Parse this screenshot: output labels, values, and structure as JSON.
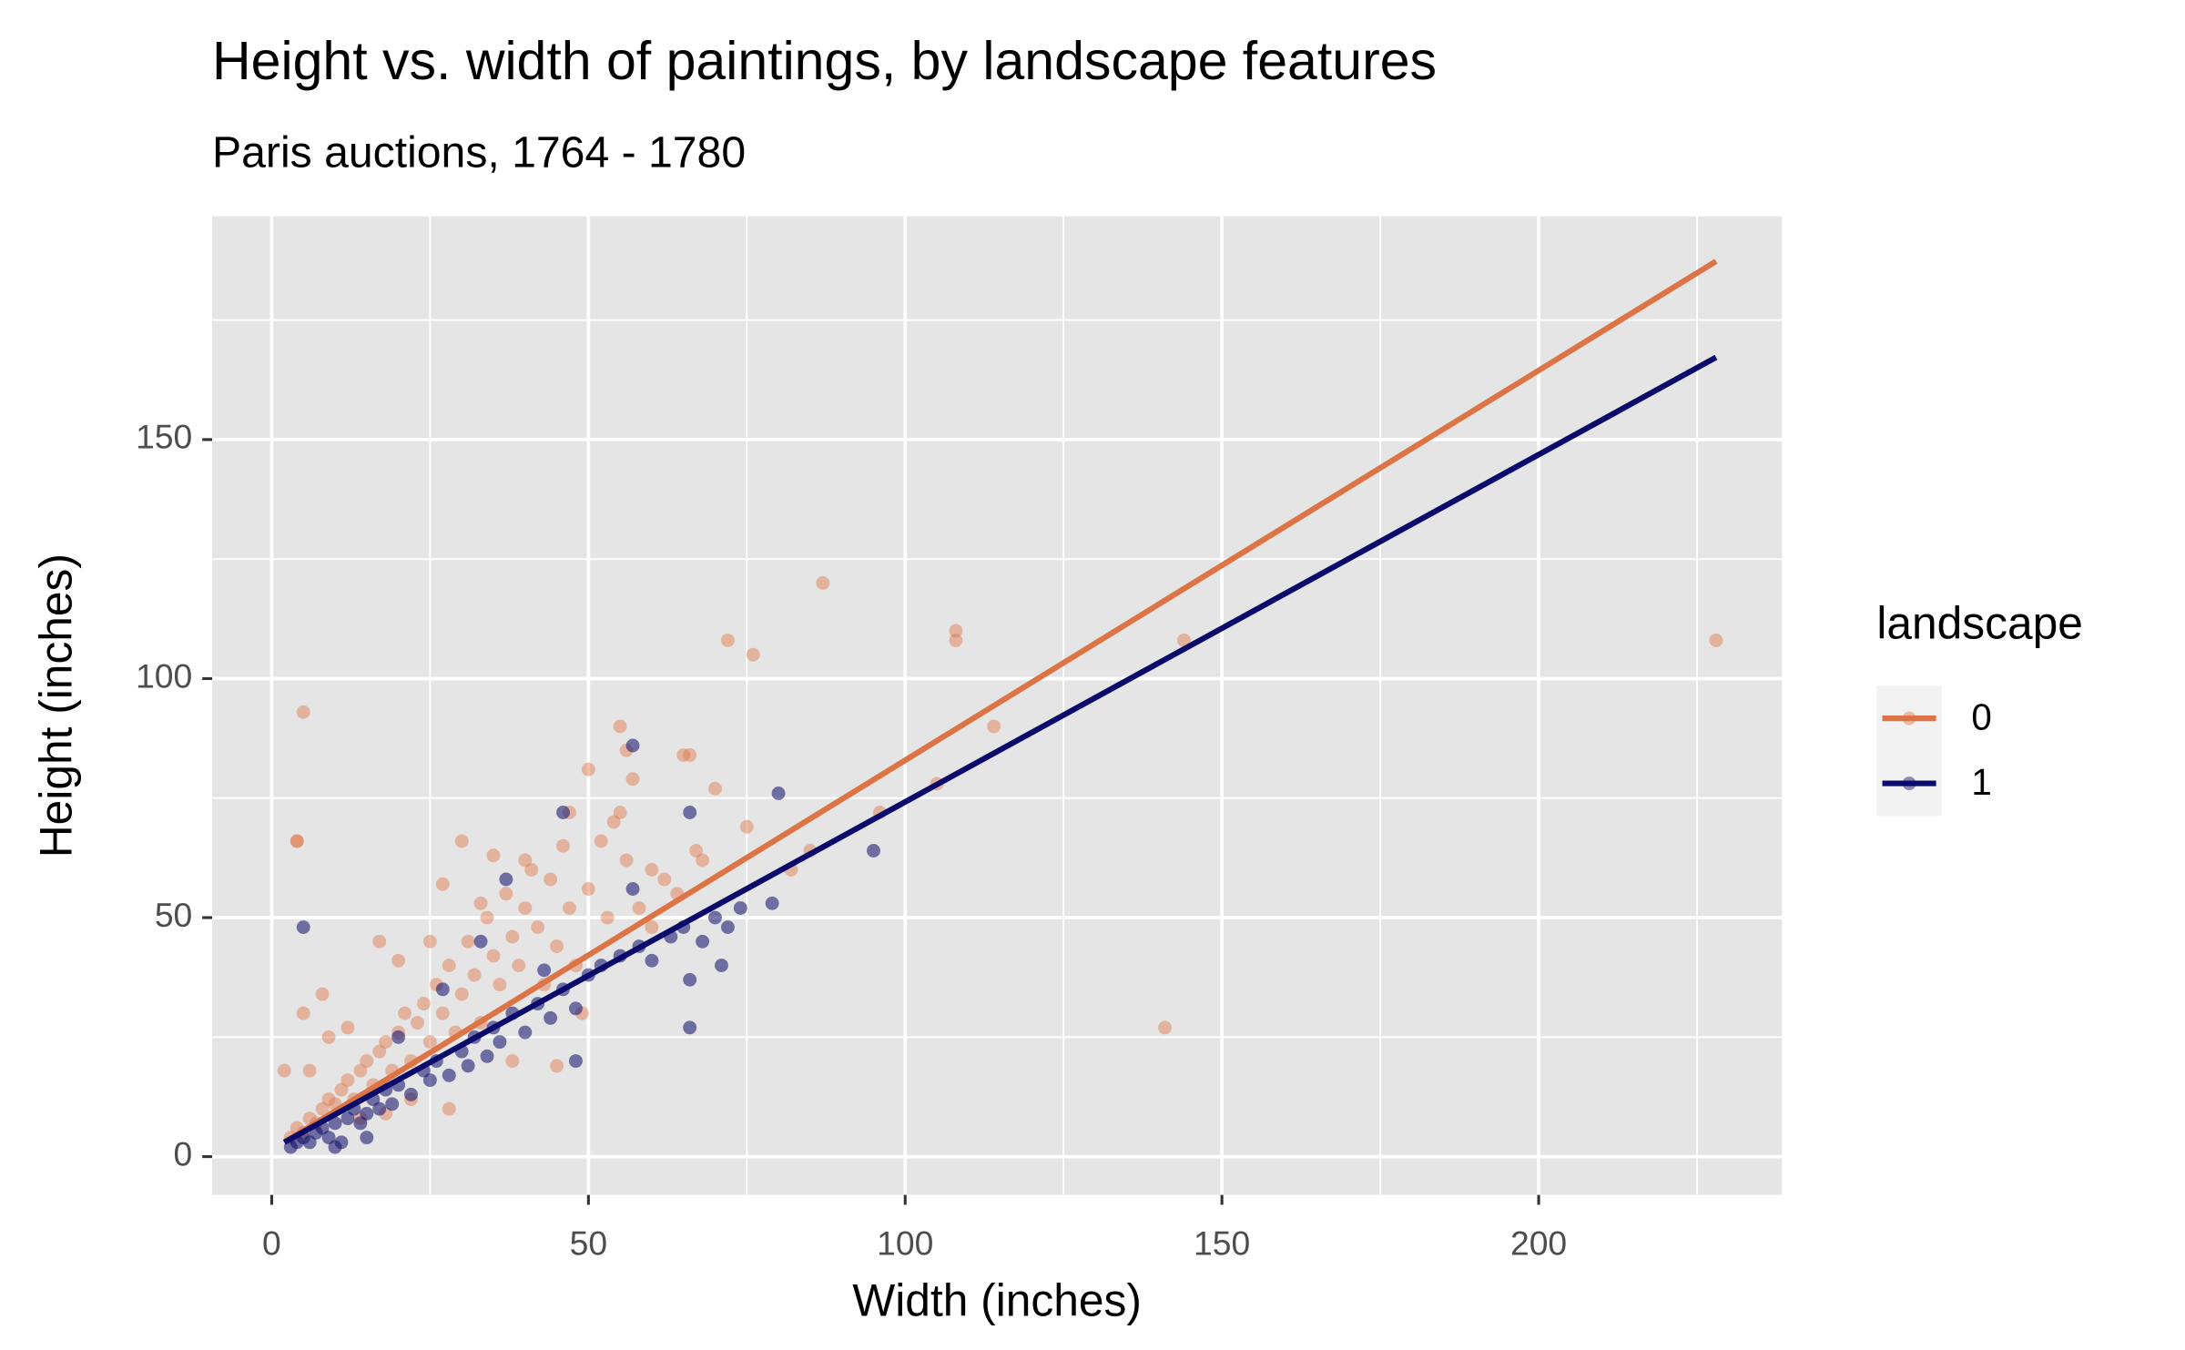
{
  "chart_data": {
    "type": "scatter",
    "title": "Height vs. width of paintings, by landscape features",
    "subtitle": "Paris auctions, 1764 - 1780",
    "x_label": "Width (inches)",
    "y_label": "Height (inches)",
    "legend_title": "landscape",
    "legend_position": "right",
    "grid": true,
    "xlim": [
      -9.4,
      238.4
    ],
    "ylim": [
      -8,
      196.7
    ],
    "xticks": [
      0,
      50,
      100,
      150,
      200
    ],
    "yticks": [
      0,
      50,
      100,
      150
    ],
    "x_minor_ticks": [
      25,
      75,
      125,
      175,
      225
    ],
    "y_minor_ticks": [
      25,
      75,
      125,
      175
    ],
    "series": [
      {
        "name": "0",
        "color": "#DD7445",
        "x": [
          5,
          4,
          4,
          87,
          72,
          76,
          108,
          108,
          114,
          144,
          228,
          141,
          2,
          96,
          105,
          85,
          82,
          55,
          56,
          50,
          57,
          66,
          65,
          70,
          75,
          67,
          60,
          55,
          47,
          8,
          5,
          3,
          4,
          5,
          6,
          7,
          8,
          9,
          10,
          11,
          12,
          13,
          14,
          15,
          16,
          17,
          18,
          19,
          20,
          21,
          22,
          23,
          24,
          25,
          26,
          27,
          28,
          29,
          30,
          31,
          32,
          33,
          34,
          35,
          36,
          37,
          38,
          39,
          40,
          41,
          42,
          43,
          44,
          45,
          46,
          47,
          48,
          49,
          50,
          52,
          53,
          54,
          56,
          58,
          60,
          62,
          64,
          68,
          17,
          12,
          20,
          25,
          30,
          35,
          40,
          9,
          6,
          27,
          33,
          45,
          38,
          28,
          22,
          18,
          14
        ],
        "values": [
          93,
          66,
          66,
          120,
          108,
          105,
          110,
          108,
          90,
          108,
          108,
          27,
          18,
          72,
          78,
          64,
          60,
          90,
          85,
          81,
          79,
          84,
          84,
          77,
          69,
          64,
          60,
          72,
          72,
          34,
          30,
          4,
          6,
          5,
          8,
          7,
          10,
          12,
          11,
          14,
          16,
          12,
          18,
          20,
          15,
          22,
          24,
          18,
          26,
          30,
          20,
          28,
          32,
          24,
          36,
          30,
          40,
          26,
          34,
          45,
          38,
          28,
          50,
          42,
          36,
          55,
          46,
          40,
          52,
          60,
          48,
          36,
          58,
          44,
          65,
          52,
          40,
          30,
          56,
          66,
          50,
          70,
          62,
          52,
          48,
          58,
          55,
          62,
          45,
          27,
          41,
          45,
          66,
          63,
          62,
          25,
          18,
          57,
          53,
          19,
          20,
          10,
          12,
          9,
          8
        ],
        "fit_x": [
          2,
          228
        ],
        "fit_values": [
          3,
          187.3
        ]
      },
      {
        "name": "1",
        "color": "#0B0B6B",
        "x": [
          57,
          80,
          66,
          95,
          79,
          5,
          66,
          66,
          71,
          72,
          57,
          48,
          46,
          43,
          3,
          4,
          5,
          6,
          7,
          8,
          9,
          10,
          11,
          12,
          13,
          14,
          15,
          16,
          17,
          18,
          19,
          20,
          22,
          24,
          25,
          26,
          28,
          30,
          31,
          32,
          34,
          35,
          36,
          38,
          40,
          42,
          44,
          46,
          48,
          50,
          52,
          55,
          58,
          60,
          63,
          65,
          68,
          70,
          74,
          27,
          20,
          37,
          33,
          15,
          10
        ],
        "values": [
          86,
          76,
          72,
          64,
          53,
          48,
          37,
          27,
          40,
          48,
          56,
          20,
          72,
          39,
          2,
          3,
          4,
          3,
          5,
          6,
          4,
          7,
          3,
          8,
          10,
          7,
          9,
          12,
          10,
          14,
          11,
          15,
          13,
          18,
          16,
          20,
          17,
          22,
          19,
          25,
          21,
          27,
          24,
          30,
          26,
          32,
          29,
          35,
          31,
          38,
          40,
          42,
          44,
          41,
          46,
          48,
          45,
          50,
          52,
          35,
          25,
          58,
          45,
          4,
          2
        ],
        "fit_x": [
          2,
          228
        ],
        "fit_values": [
          3,
          167.2
        ]
      }
    ]
  }
}
